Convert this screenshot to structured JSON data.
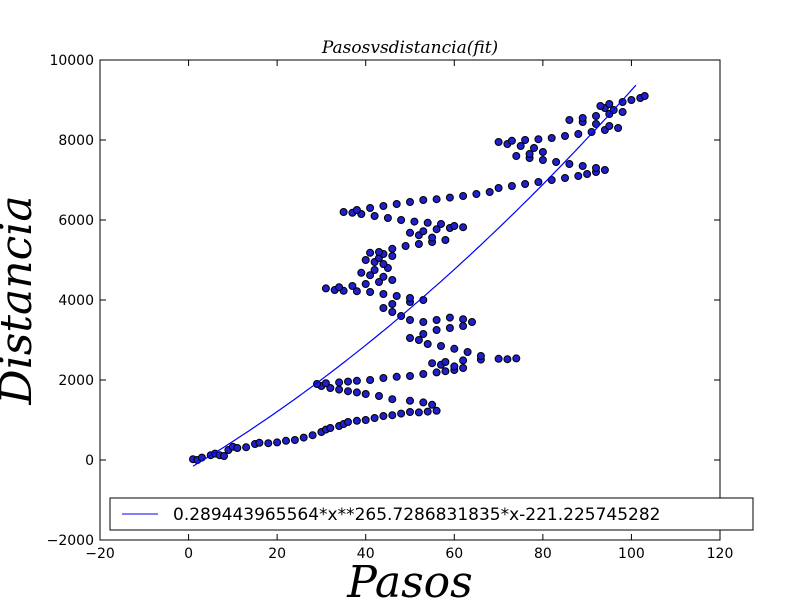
{
  "chart_data": {
    "type": "scatter",
    "title": "Pasosvsdistancia(fit)",
    "xlabel": "Pasos",
    "ylabel": "Distancia",
    "xlim": [
      -20,
      120
    ],
    "ylim": [
      -2000,
      10000
    ],
    "xticks": [
      -20,
      0,
      20,
      40,
      60,
      80,
      100,
      120
    ],
    "yticks": [
      -2000,
      0,
      2000,
      4000,
      6000,
      8000,
      10000
    ],
    "xtick_labels": [
      "−20",
      "0",
      "20",
      "40",
      "60",
      "80",
      "100",
      "120"
    ],
    "ytick_labels": [
      "−2000",
      "0",
      "2000",
      "4000",
      "6000",
      "8000",
      "10000"
    ],
    "grid": false,
    "legend_position": "lower-right",
    "colors": {
      "scatter_fill": "#1f1fcc",
      "scatter_edge": "#000000",
      "fit_line": "#0000ff"
    },
    "series": [
      {
        "kind": "scatter",
        "points": [
          [
            1,
            20
          ],
          [
            2,
            0
          ],
          [
            3,
            60
          ],
          [
            5,
            120
          ],
          [
            6,
            160
          ],
          [
            7,
            120
          ],
          [
            8,
            100
          ],
          [
            9,
            250
          ],
          [
            10,
            330
          ],
          [
            11,
            300
          ],
          [
            13,
            320
          ],
          [
            15,
            400
          ],
          [
            16,
            430
          ],
          [
            18,
            420
          ],
          [
            20,
            440
          ],
          [
            22,
            480
          ],
          [
            24,
            500
          ],
          [
            26,
            560
          ],
          [
            28,
            620
          ],
          [
            30,
            700
          ],
          [
            31,
            760
          ],
          [
            32,
            800
          ],
          [
            34,
            850
          ],
          [
            35,
            900
          ],
          [
            36,
            950
          ],
          [
            38,
            980
          ],
          [
            40,
            1000
          ],
          [
            42,
            1050
          ],
          [
            44,
            1100
          ],
          [
            46,
            1120
          ],
          [
            48,
            1160
          ],
          [
            50,
            1200
          ],
          [
            52,
            1190
          ],
          [
            54,
            1210
          ],
          [
            56,
            1230
          ],
          [
            55,
            1380
          ],
          [
            53,
            1440
          ],
          [
            50,
            1480
          ],
          [
            46,
            1520
          ],
          [
            43,
            1600
          ],
          [
            40,
            1650
          ],
          [
            38,
            1690
          ],
          [
            36,
            1720
          ],
          [
            34,
            1760
          ],
          [
            32,
            1800
          ],
          [
            30,
            1850
          ],
          [
            29,
            1900
          ],
          [
            31,
            1920
          ],
          [
            34,
            1940
          ],
          [
            36,
            1960
          ],
          [
            38,
            1980
          ],
          [
            41,
            2000
          ],
          [
            44,
            2050
          ],
          [
            47,
            2080
          ],
          [
            50,
            2100
          ],
          [
            53,
            2150
          ],
          [
            56,
            2190
          ],
          [
            58,
            2220
          ],
          [
            60,
            2250
          ],
          [
            62,
            2300
          ],
          [
            60,
            2340
          ],
          [
            57,
            2380
          ],
          [
            55,
            2420
          ],
          [
            58,
            2450
          ],
          [
            62,
            2490
          ],
          [
            66,
            2510
          ],
          [
            70,
            2530
          ],
          [
            74,
            2540
          ],
          [
            72,
            2520
          ],
          [
            66,
            2600
          ],
          [
            63,
            2700
          ],
          [
            60,
            2780
          ],
          [
            57,
            2850
          ],
          [
            54,
            2900
          ],
          [
            52,
            3000
          ],
          [
            50,
            3050
          ],
          [
            53,
            3150
          ],
          [
            56,
            3250
          ],
          [
            59,
            3300
          ],
          [
            62,
            3350
          ],
          [
            64,
            3450
          ],
          [
            62,
            3520
          ],
          [
            59,
            3560
          ],
          [
            56,
            3500
          ],
          [
            53,
            3450
          ],
          [
            50,
            3500
          ],
          [
            48,
            3600
          ],
          [
            46,
            3700
          ],
          [
            44,
            3800
          ],
          [
            46,
            3900
          ],
          [
            50,
            3950
          ],
          [
            53,
            4000
          ],
          [
            50,
            4050
          ],
          [
            47,
            4100
          ],
          [
            44,
            4150
          ],
          [
            41,
            4200
          ],
          [
            38,
            4220
          ],
          [
            35,
            4230
          ],
          [
            33,
            4250
          ],
          [
            31,
            4290
          ],
          [
            34,
            4320
          ],
          [
            37,
            4350
          ],
          [
            40,
            4400
          ],
          [
            43,
            4450
          ],
          [
            46,
            4500
          ],
          [
            44,
            4580
          ],
          [
            41,
            4620
          ],
          [
            39,
            4680
          ],
          [
            42,
            4750
          ],
          [
            45,
            4800
          ],
          [
            44,
            4900
          ],
          [
            42,
            4950
          ],
          [
            40,
            5000
          ],
          [
            43,
            5050
          ],
          [
            46,
            5100
          ],
          [
            44,
            5150
          ],
          [
            41,
            5180
          ],
          [
            43,
            5200
          ],
          [
            46,
            5280
          ],
          [
            49,
            5350
          ],
          [
            52,
            5400
          ],
          [
            55,
            5450
          ],
          [
            58,
            5500
          ],
          [
            55,
            5560
          ],
          [
            52,
            5620
          ],
          [
            50,
            5680
          ],
          [
            53,
            5720
          ],
          [
            56,
            5770
          ],
          [
            59,
            5800
          ],
          [
            62,
            5820
          ],
          [
            60,
            5850
          ],
          [
            57,
            5900
          ],
          [
            54,
            5930
          ],
          [
            51,
            5960
          ],
          [
            48,
            6000
          ],
          [
            45,
            6050
          ],
          [
            42,
            6100
          ],
          [
            39,
            6150
          ],
          [
            37,
            6180
          ],
          [
            35,
            6200
          ],
          [
            38,
            6250
          ],
          [
            41,
            6300
          ],
          [
            44,
            6350
          ],
          [
            47,
            6400
          ],
          [
            50,
            6450
          ],
          [
            53,
            6500
          ],
          [
            56,
            6520
          ],
          [
            59,
            6560
          ],
          [
            62,
            6600
          ],
          [
            65,
            6650
          ],
          [
            68,
            6700
          ],
          [
            70,
            6800
          ],
          [
            73,
            6850
          ],
          [
            76,
            6900
          ],
          [
            79,
            6950
          ],
          [
            82,
            7000
          ],
          [
            85,
            7050
          ],
          [
            88,
            7100
          ],
          [
            90,
            7150
          ],
          [
            92,
            7200
          ],
          [
            94,
            7250
          ],
          [
            92,
            7300
          ],
          [
            89,
            7350
          ],
          [
            86,
            7400
          ],
          [
            83,
            7450
          ],
          [
            80,
            7500
          ],
          [
            77,
            7550
          ],
          [
            74,
            7600
          ],
          [
            77,
            7650
          ],
          [
            80,
            7700
          ],
          [
            78,
            7800
          ],
          [
            75,
            7850
          ],
          [
            72,
            7900
          ],
          [
            70,
            7950
          ],
          [
            73,
            7980
          ],
          [
            76,
            8000
          ],
          [
            79,
            8020
          ],
          [
            82,
            8050
          ],
          [
            85,
            8100
          ],
          [
            88,
            8150
          ],
          [
            91,
            8200
          ],
          [
            94,
            8250
          ],
          [
            97,
            8300
          ],
          [
            95,
            8350
          ],
          [
            92,
            8400
          ],
          [
            89,
            8450
          ],
          [
            86,
            8500
          ],
          [
            89,
            8550
          ],
          [
            92,
            8600
          ],
          [
            95,
            8650
          ],
          [
            98,
            8700
          ],
          [
            96,
            8750
          ],
          [
            94,
            8800
          ],
          [
            93,
            8850
          ],
          [
            95,
            8900
          ],
          [
            98,
            8950
          ],
          [
            100,
            9000
          ],
          [
            102,
            9050
          ],
          [
            103,
            9100
          ]
        ]
      },
      {
        "kind": "line",
        "name": "0.289443965564*x**265.7286831835*x-221.225745282",
        "coefficients": {
          "a": 0.289443965564,
          "b": 65.7286831835,
          "c": -221.225745282
        },
        "x_range": [
          1,
          101
        ]
      }
    ]
  }
}
